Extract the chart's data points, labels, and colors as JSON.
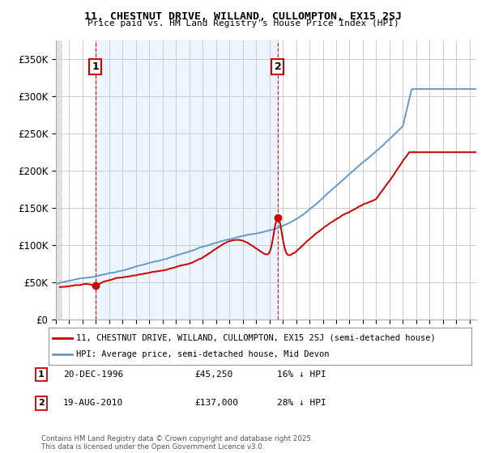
{
  "title": "11, CHESTNUT DRIVE, WILLAND, CULLOMPTON, EX15 2SJ",
  "subtitle": "Price paid vs. HM Land Registry's House Price Index (HPI)",
  "red_label": "11, CHESTNUT DRIVE, WILLAND, CULLOMPTON, EX15 2SJ (semi-detached house)",
  "blue_label": "HPI: Average price, semi-detached house, Mid Devon",
  "annotation1_date": "20-DEC-1996",
  "annotation1_price": "£45,250",
  "annotation1_hpi": "16% ↓ HPI",
  "annotation2_date": "19-AUG-2010",
  "annotation2_price": "£137,000",
  "annotation2_hpi": "28% ↓ HPI",
  "footnote": "Contains HM Land Registry data © Crown copyright and database right 2025.\nThis data is licensed under the Open Government Licence v3.0.",
  "xmin": 1994.0,
  "xmax": 2025.5,
  "ymin": 0,
  "ymax": 375000,
  "yticks": [
    0,
    50000,
    100000,
    150000,
    200000,
    250000,
    300000,
    350000
  ],
  "ytick_labels": [
    "£0",
    "£50K",
    "£100K",
    "£150K",
    "£200K",
    "£250K",
    "£300K",
    "£350K"
  ],
  "red_color": "#cc0000",
  "blue_color": "#6699cc",
  "blue_shade_color": "#ddeeff",
  "vline_color": "#cc0000",
  "bg_color": "#ffffff",
  "grid_color": "#cccccc",
  "sale1_x": 1996.97,
  "sale1_y": 45250,
  "sale2_x": 2010.63,
  "sale2_y": 137000,
  "hatch_end": 1994.5
}
